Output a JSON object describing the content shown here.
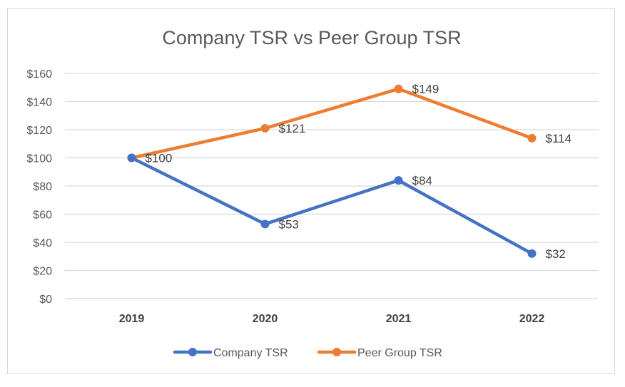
{
  "chart_data": {
    "type": "line",
    "title": "Company TSR vs Peer Group TSR",
    "categories": [
      "2019",
      "2020",
      "2021",
      "2022"
    ],
    "series": [
      {
        "name": "Company TSR",
        "color": "#4472C4",
        "values": [
          100,
          53,
          84,
          32
        ],
        "labels": [
          "$100",
          "$53",
          "$84",
          "$32"
        ]
      },
      {
        "name": "Peer Group TSR",
        "color": "#ED7D31",
        "values": [
          100,
          121,
          149,
          114
        ],
        "labels": [
          "$100",
          "$121",
          "$149",
          "$114"
        ]
      }
    ],
    "yticks": [
      0,
      20,
      40,
      60,
      80,
      100,
      120,
      140,
      160
    ],
    "ytick_labels": [
      "$0",
      "$20",
      "$40",
      "$60",
      "$80",
      "$100",
      "$120",
      "$140",
      "$160"
    ],
    "ylim": [
      0,
      160
    ],
    "xlabel": "",
    "ylabel": "",
    "grid": true,
    "legend_position": "bottom",
    "gridline_color": "#d9d9d9"
  }
}
